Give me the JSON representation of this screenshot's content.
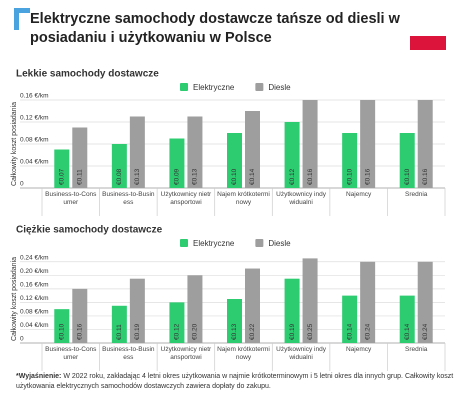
{
  "title": "Elektryczne samochody dostawcze tańsze od diesli w posiadaniu i użytkowaniu w Polsce",
  "chart_data": [
    {
      "type": "bar",
      "title": "Lekkie samochody dostawcze",
      "y_label": "Całkowity koszt posiadania",
      "categories": [
        "Business-to-Consumer",
        "Business-to-Business",
        "Użytkownicy nietransportowi",
        "Najem krótkoterminowy",
        "Użytkownicy indywidualni",
        "Najemcy",
        "Średnia"
      ],
      "series": [
        {
          "name": "Elektryczne",
          "color": "#2ecc71",
          "values": [
            0.07,
            0.08,
            0.09,
            0.1,
            0.12,
            0.1,
            0.1
          ],
          "value_labels": [
            "€0.07",
            "€0.08",
            "€0.09",
            "€0.10",
            "€0.12",
            "€0.10",
            "€0.10"
          ]
        },
        {
          "name": "Diesle",
          "color": "#9e9e9e",
          "values": [
            0.11,
            0.13,
            0.13,
            0.14,
            0.16,
            0.16,
            0.16
          ],
          "value_labels": [
            "€0.11",
            "€0.13",
            "€0.13",
            "€0.14",
            "€0.16",
            "€0.16",
            "€0.16"
          ]
        }
      ],
      "ylim": [
        0,
        0.16
      ],
      "yticks": [
        0,
        {
          "value": 0.04,
          "label": "0.04 €/km"
        },
        {
          "value": 0.08,
          "label": "0.08 €/km"
        },
        {
          "value": 0.12,
          "label": "0.12 €/km"
        },
        {
          "value": 0.16,
          "label": "0.16 €/km"
        }
      ],
      "grid": true
    },
    {
      "type": "bar",
      "title": "Ciężkie samochody dostawcze",
      "y_label": "Całkowity koszt posiadania",
      "categories": [
        "Business-to-Consumer",
        "Business-to-Business",
        "Użytkownicy nietransportowi",
        "Najem krótkoterminowy",
        "Użytkownicy indywidualni",
        "Najemcy",
        "Średnia"
      ],
      "series": [
        {
          "name": "Elektryczne",
          "color": "#2ecc71",
          "values": [
            0.1,
            0.11,
            0.12,
            0.13,
            0.19,
            0.14,
            0.14
          ],
          "value_labels": [
            "€0.10",
            "€0.11",
            "€0.12",
            "€0.13",
            "€0.19",
            "€0.14",
            "€0.14"
          ]
        },
        {
          "name": "Diesle",
          "color": "#9e9e9e",
          "values": [
            0.16,
            0.19,
            0.2,
            0.22,
            0.25,
            0.24,
            0.24
          ],
          "value_labels": [
            "€0.16",
            "€0.19",
            "€0.20",
            "€0.22",
            "€0.25",
            "€0.24",
            "€0.24"
          ]
        }
      ],
      "ylim": [
        0,
        0.26
      ],
      "yticks": [
        0,
        {
          "value": 0.04,
          "label": "0.04 €/km"
        },
        {
          "value": 0.08,
          "label": "0.08 €/km"
        },
        {
          "value": 0.12,
          "label": "0.12 €/km"
        },
        {
          "value": 0.16,
          "label": "0.16 €/km"
        },
        {
          "value": 0.2,
          "label": "0.20 €/km"
        },
        {
          "value": 0.24,
          "label": "0.24 €/km"
        }
      ],
      "grid": true
    }
  ],
  "footnote": {
    "label": "*Wyjaśnienie:",
    "text": "W 2022 roku, zakładając 4 letni okres użytkowania w najmie krótkoterminowym i 5 letni okres dla innych grup. Całkowity koszt użytkowania elektrycznych samochodów dostawczych zawiera dopłaty do zakupu."
  }
}
